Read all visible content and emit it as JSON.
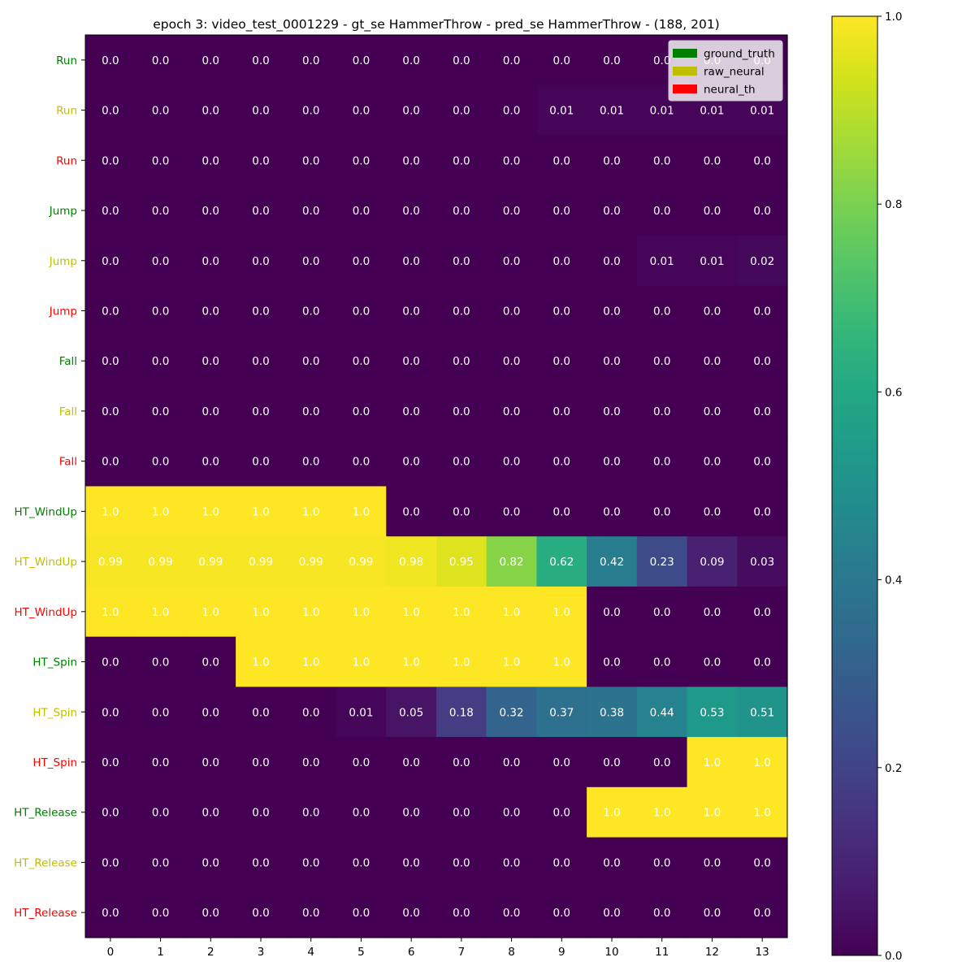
{
  "chart_data": {
    "type": "heatmap",
    "title": "epoch 3: video_test_0001229 - gt_se HammerThrow - pred_se HammerThrow - (188, 201)",
    "xlabel": "",
    "ylabel": "",
    "x_ticks": [
      0,
      1,
      2,
      3,
      4,
      5,
      6,
      7,
      8,
      9,
      10,
      11,
      12,
      13
    ],
    "rows": [
      {
        "label": "Run",
        "source": "ground_truth",
        "values": [
          "0.0",
          "0.0",
          "0.0",
          "0.0",
          "0.0",
          "0.0",
          "0.0",
          "0.0",
          "0.0",
          "0.0",
          "0.0",
          "0.0",
          "0.0",
          "0.0"
        ]
      },
      {
        "label": "Run",
        "source": "raw_neural",
        "values": [
          "0.0",
          "0.0",
          "0.0",
          "0.0",
          "0.0",
          "0.0",
          "0.0",
          "0.0",
          "0.0",
          "0.01",
          "0.01",
          "0.01",
          "0.01",
          "0.01"
        ]
      },
      {
        "label": "Run",
        "source": "neural_th",
        "values": [
          "0.0",
          "0.0",
          "0.0",
          "0.0",
          "0.0",
          "0.0",
          "0.0",
          "0.0",
          "0.0",
          "0.0",
          "0.0",
          "0.0",
          "0.0",
          "0.0"
        ]
      },
      {
        "label": "Jump",
        "source": "ground_truth",
        "values": [
          "0.0",
          "0.0",
          "0.0",
          "0.0",
          "0.0",
          "0.0",
          "0.0",
          "0.0",
          "0.0",
          "0.0",
          "0.0",
          "0.0",
          "0.0",
          "0.0"
        ]
      },
      {
        "label": "Jump",
        "source": "raw_neural",
        "values": [
          "0.0",
          "0.0",
          "0.0",
          "0.0",
          "0.0",
          "0.0",
          "0.0",
          "0.0",
          "0.0",
          "0.0",
          "0.0",
          "0.01",
          "0.01",
          "0.02"
        ]
      },
      {
        "label": "Jump",
        "source": "neural_th",
        "values": [
          "0.0",
          "0.0",
          "0.0",
          "0.0",
          "0.0",
          "0.0",
          "0.0",
          "0.0",
          "0.0",
          "0.0",
          "0.0",
          "0.0",
          "0.0",
          "0.0"
        ]
      },
      {
        "label": "Fall",
        "source": "ground_truth",
        "values": [
          "0.0",
          "0.0",
          "0.0",
          "0.0",
          "0.0",
          "0.0",
          "0.0",
          "0.0",
          "0.0",
          "0.0",
          "0.0",
          "0.0",
          "0.0",
          "0.0"
        ]
      },
      {
        "label": "Fall",
        "source": "raw_neural",
        "values": [
          "0.0",
          "0.0",
          "0.0",
          "0.0",
          "0.0",
          "0.0",
          "0.0",
          "0.0",
          "0.0",
          "0.0",
          "0.0",
          "0.0",
          "0.0",
          "0.0"
        ]
      },
      {
        "label": "Fall",
        "source": "neural_th",
        "values": [
          "0.0",
          "0.0",
          "0.0",
          "0.0",
          "0.0",
          "0.0",
          "0.0",
          "0.0",
          "0.0",
          "0.0",
          "0.0",
          "0.0",
          "0.0",
          "0.0"
        ]
      },
      {
        "label": "HT_WindUp",
        "source": "ground_truth",
        "values": [
          "1.0",
          "1.0",
          "1.0",
          "1.0",
          "1.0",
          "1.0",
          "0.0",
          "0.0",
          "0.0",
          "0.0",
          "0.0",
          "0.0",
          "0.0",
          "0.0"
        ]
      },
      {
        "label": "HT_WindUp",
        "source": "raw_neural",
        "values": [
          "0.99",
          "0.99",
          "0.99",
          "0.99",
          "0.99",
          "0.99",
          "0.98",
          "0.95",
          "0.82",
          "0.62",
          "0.42",
          "0.23",
          "0.09",
          "0.03"
        ]
      },
      {
        "label": "HT_WindUp",
        "source": "neural_th",
        "values": [
          "1.0",
          "1.0",
          "1.0",
          "1.0",
          "1.0",
          "1.0",
          "1.0",
          "1.0",
          "1.0",
          "1.0",
          "0.0",
          "0.0",
          "0.0",
          "0.0"
        ]
      },
      {
        "label": "HT_Spin",
        "source": "ground_truth",
        "values": [
          "0.0",
          "0.0",
          "0.0",
          "1.0",
          "1.0",
          "1.0",
          "1.0",
          "1.0",
          "1.0",
          "1.0",
          "0.0",
          "0.0",
          "0.0",
          "0.0"
        ]
      },
      {
        "label": "HT_Spin",
        "source": "raw_neural",
        "values": [
          "0.0",
          "0.0",
          "0.0",
          "0.0",
          "0.0",
          "0.01",
          "0.05",
          "0.18",
          "0.32",
          "0.37",
          "0.38",
          "0.44",
          "0.53",
          "0.51"
        ]
      },
      {
        "label": "HT_Spin",
        "source": "neural_th",
        "values": [
          "0.0",
          "0.0",
          "0.0",
          "0.0",
          "0.0",
          "0.0",
          "0.0",
          "0.0",
          "0.0",
          "0.0",
          "0.0",
          "0.0",
          "1.0",
          "1.0"
        ]
      },
      {
        "label": "HT_Release",
        "source": "ground_truth",
        "values": [
          "0.0",
          "0.0",
          "0.0",
          "0.0",
          "0.0",
          "0.0",
          "0.0",
          "0.0",
          "0.0",
          "0.0",
          "1.0",
          "1.0",
          "1.0",
          "1.0"
        ]
      },
      {
        "label": "HT_Release",
        "source": "raw_neural",
        "values": [
          "0.0",
          "0.0",
          "0.0",
          "0.0",
          "0.0",
          "0.0",
          "0.0",
          "0.0",
          "0.0",
          "0.0",
          "0.0",
          "0.0",
          "0.0",
          "0.0"
        ]
      },
      {
        "label": "HT_Release",
        "source": "neural_th",
        "values": [
          "0.0",
          "0.0",
          "0.0",
          "0.0",
          "0.0",
          "0.0",
          "0.0",
          "0.0",
          "0.0",
          "0.0",
          "0.0",
          "0.0",
          "0.0",
          "0.0"
        ]
      }
    ],
    "legend": {
      "placement": "top-right",
      "entries": [
        {
          "name": "ground_truth",
          "color": "#008000"
        },
        {
          "name": "raw_neural",
          "color": "#bfbf00"
        },
        {
          "name": "neural_th",
          "color": "#ff0000"
        }
      ]
    },
    "colorbar": {
      "colormap": "viridis",
      "range": [
        0.0,
        1.0
      ],
      "ticks": [
        "0.0",
        "0.2",
        "0.4",
        "0.6",
        "0.8",
        "1.0"
      ]
    },
    "source_colors": {
      "ground_truth": "#008000",
      "raw_neural": "#bfbf00",
      "neural_th": "#ff0000"
    },
    "grid": false
  }
}
